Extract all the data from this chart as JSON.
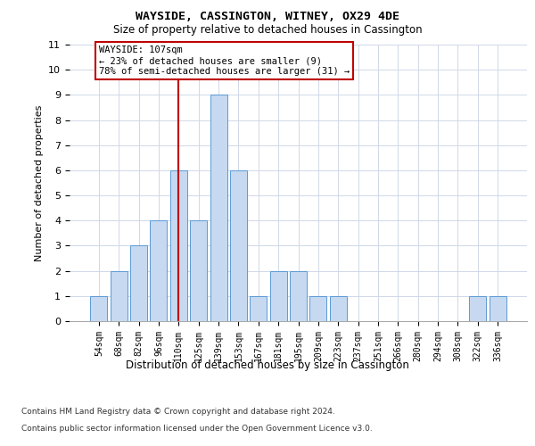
{
  "title": "WAYSIDE, CASSINGTON, WITNEY, OX29 4DE",
  "subtitle": "Size of property relative to detached houses in Cassington",
  "xlabel": "Distribution of detached houses by size in Cassington",
  "ylabel": "Number of detached properties",
  "categories": [
    "54sqm",
    "68sqm",
    "82sqm",
    "96sqm",
    "110sqm",
    "125sqm",
    "139sqm",
    "153sqm",
    "167sqm",
    "181sqm",
    "195sqm",
    "209sqm",
    "223sqm",
    "237sqm",
    "251sqm",
    "266sqm",
    "280sqm",
    "294sqm",
    "308sqm",
    "322sqm",
    "336sqm"
  ],
  "values": [
    1,
    2,
    3,
    4,
    6,
    4,
    9,
    6,
    1,
    2,
    2,
    1,
    1,
    0,
    0,
    0,
    0,
    0,
    0,
    1,
    1
  ],
  "bar_color": "#c6d9f0",
  "bar_edge_color": "#5b9bd5",
  "vline_x_index": 4,
  "vline_color": "#c00000",
  "annotation_box_text": "WAYSIDE: 107sqm\n← 23% of detached houses are smaller (9)\n78% of semi-detached houses are larger (31) →",
  "annotation_box_color": "#ffffff",
  "annotation_box_edge_color": "#c00000",
  "ylim": [
    0,
    11
  ],
  "yticks": [
    0,
    1,
    2,
    3,
    4,
    5,
    6,
    7,
    8,
    9,
    10,
    11
  ],
  "grid_color": "#d0d8e8",
  "footer_line1": "Contains HM Land Registry data © Crown copyright and database right 2024.",
  "footer_line2": "Contains public sector information licensed under the Open Government Licence v3.0.",
  "bg_color": "#ffffff"
}
